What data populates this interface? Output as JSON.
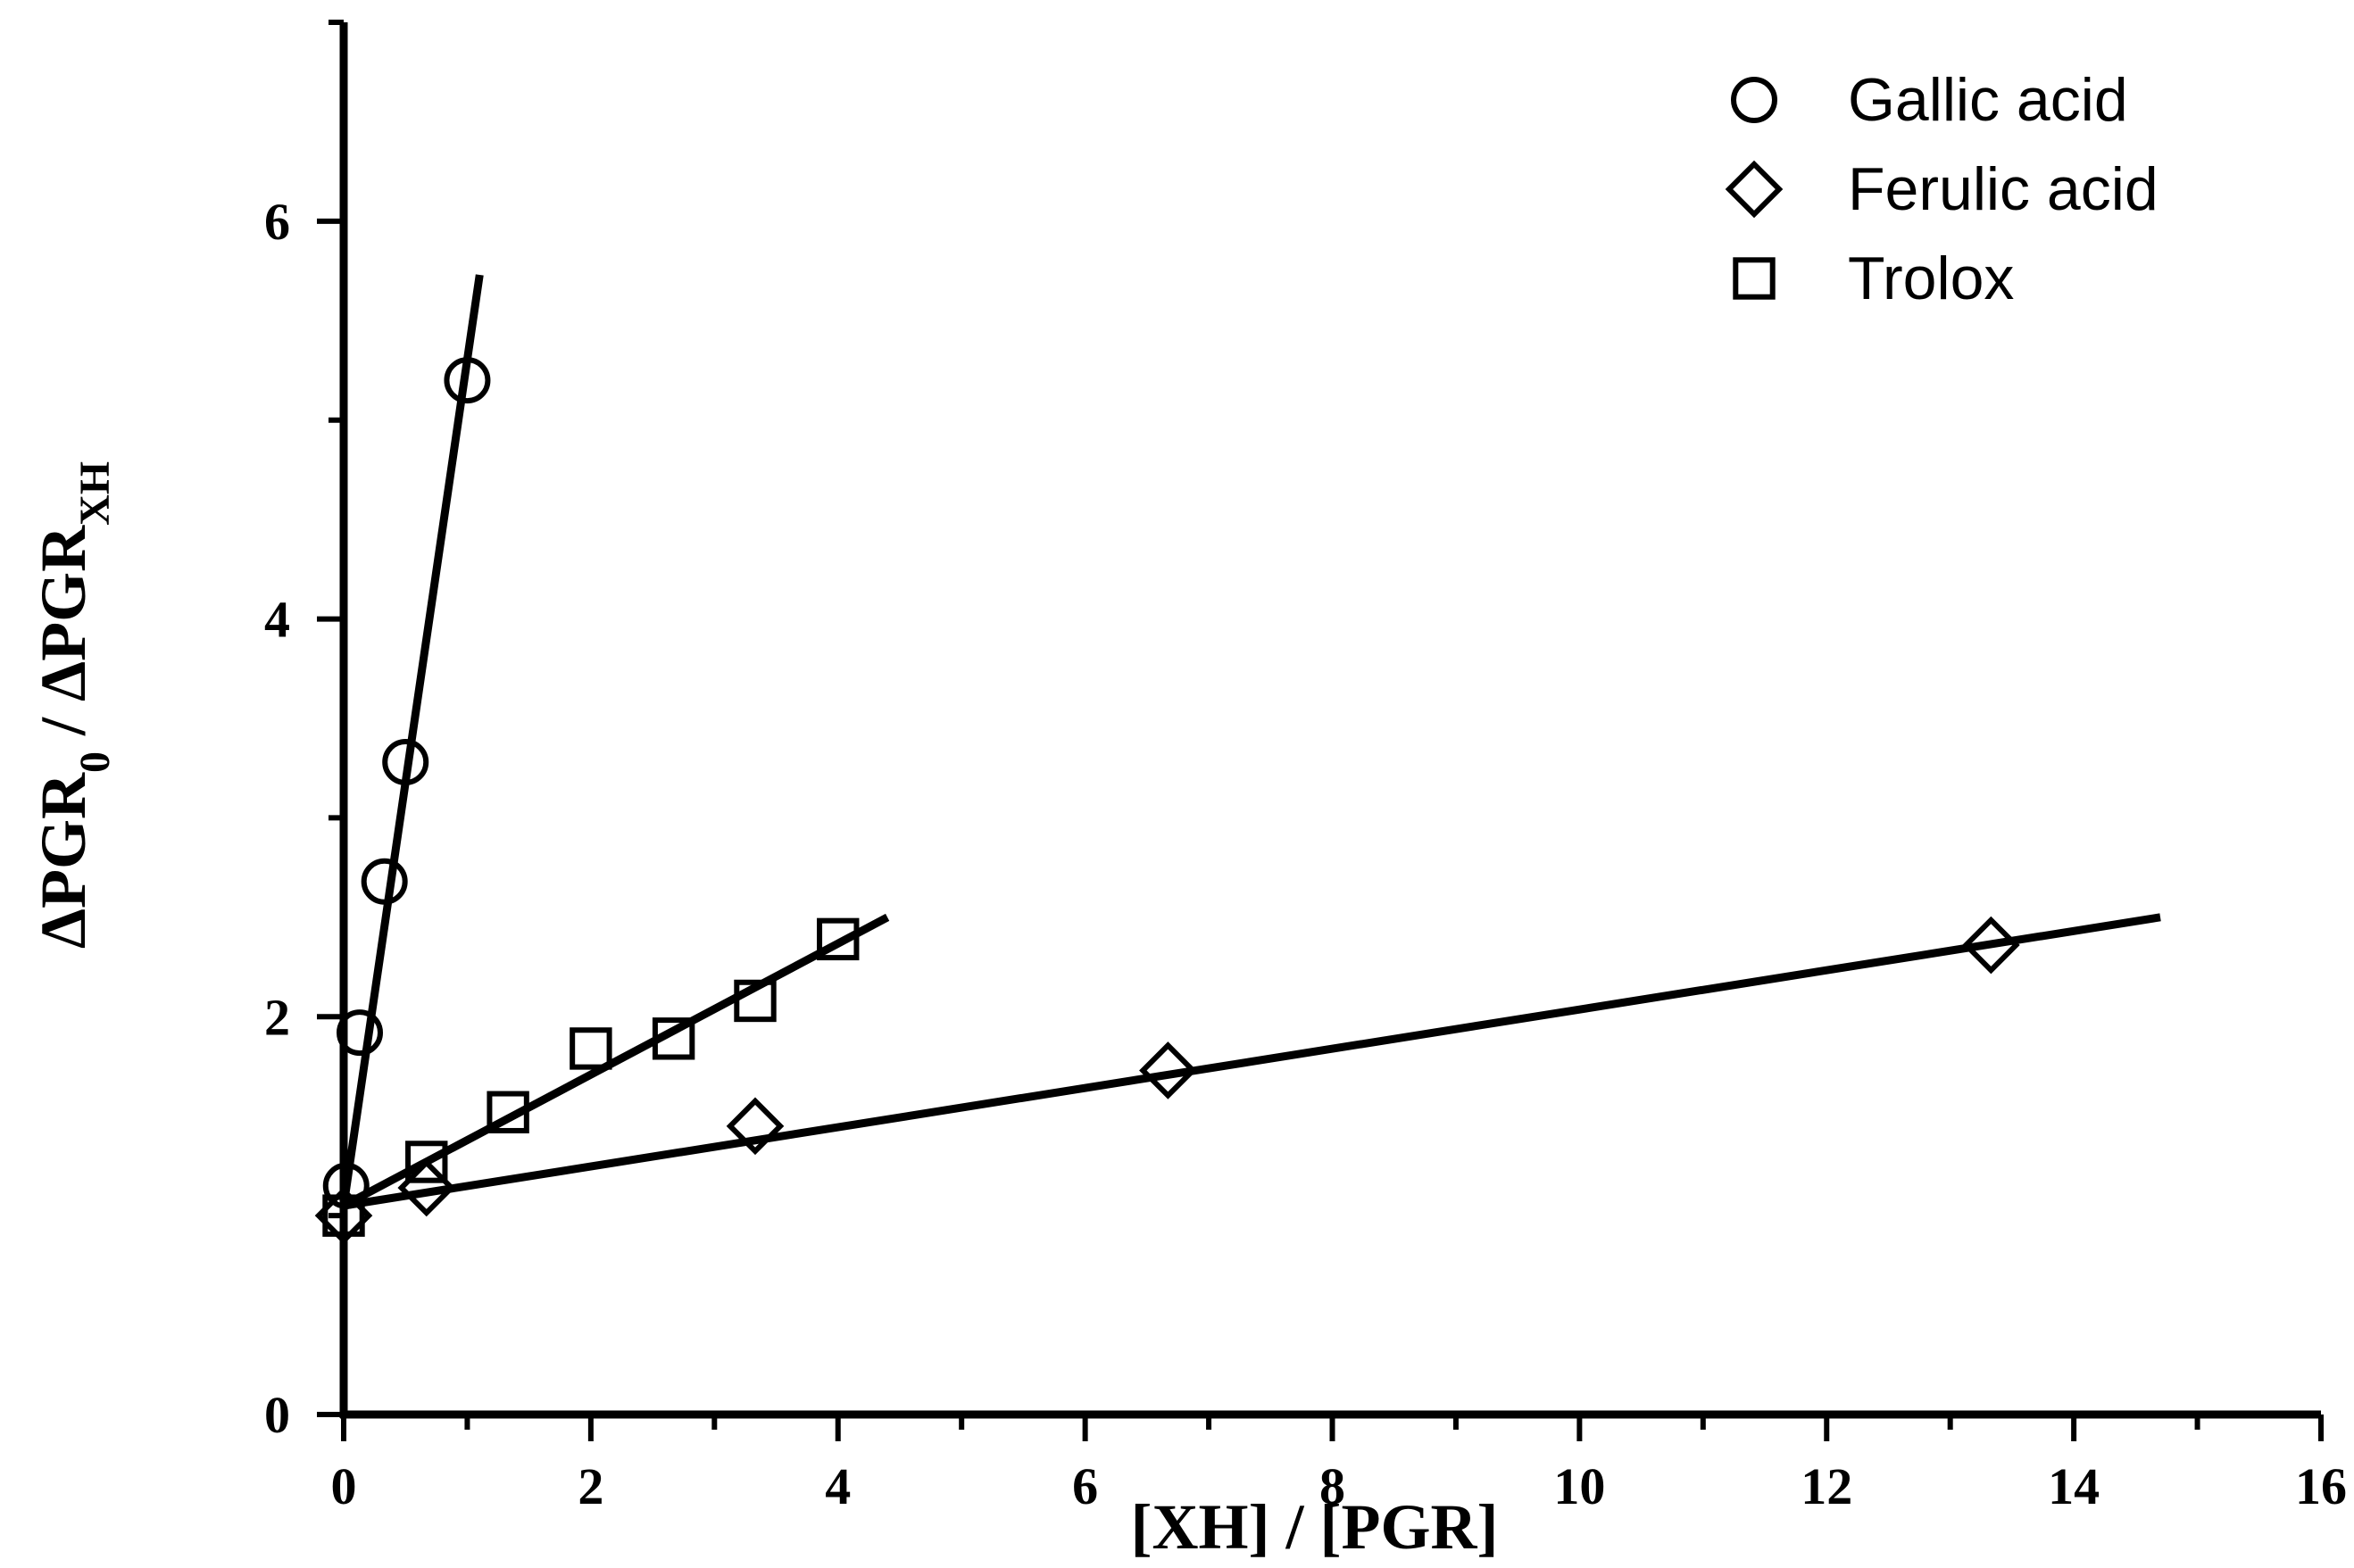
{
  "chart_data": {
    "type": "scatter",
    "title": "",
    "xlabel": "[XH] / [PGR]",
    "ylabel_main": "ΔPGR",
    "ylabel_sub0": "0",
    "ylabel_sep": " / ΔPGR",
    "ylabel_subXH": "XH",
    "xlim": [
      0,
      16
    ],
    "ylim": [
      0,
      7
    ],
    "x_ticks": [
      0,
      2,
      4,
      6,
      8,
      10,
      12,
      14,
      16
    ],
    "y_ticks": [
      0,
      2,
      4,
      6
    ],
    "x_tick_labels": [
      "0",
      "2",
      "4",
      "6",
      "8",
      "10",
      "12",
      "14",
      "16"
    ],
    "y_tick_labels": [
      "0",
      "2",
      "4",
      "6"
    ],
    "legend_position": "top-right",
    "series": [
      {
        "name": "Gallic acid",
        "marker": "circle",
        "x": [
          0.02,
          0.13,
          0.33,
          0.5,
          1.0
        ],
        "y": [
          1.15,
          1.92,
          2.68,
          3.28,
          5.2
        ],
        "fit": {
          "x": [
            0.0,
            1.1
          ],
          "y": [
            1.05,
            5.73
          ]
        }
      },
      {
        "name": "Ferulic acid",
        "marker": "diamond",
        "x": [
          0.0,
          0.67,
          3.33,
          6.67,
          13.33
        ],
        "y": [
          1.0,
          1.14,
          1.45,
          1.73,
          2.36
        ],
        "fit": {
          "x": [
            0.0,
            14.7
          ],
          "y": [
            1.05,
            2.5
          ]
        }
      },
      {
        "name": "Trolox",
        "marker": "square",
        "x": [
          0.0,
          0.67,
          1.33,
          2.0,
          2.67,
          3.33,
          4.0
        ],
        "y": [
          1.0,
          1.27,
          1.52,
          1.84,
          1.89,
          2.08,
          2.39
        ],
        "fit": {
          "x": [
            0.0,
            4.4
          ],
          "y": [
            1.05,
            2.5
          ]
        }
      }
    ]
  }
}
